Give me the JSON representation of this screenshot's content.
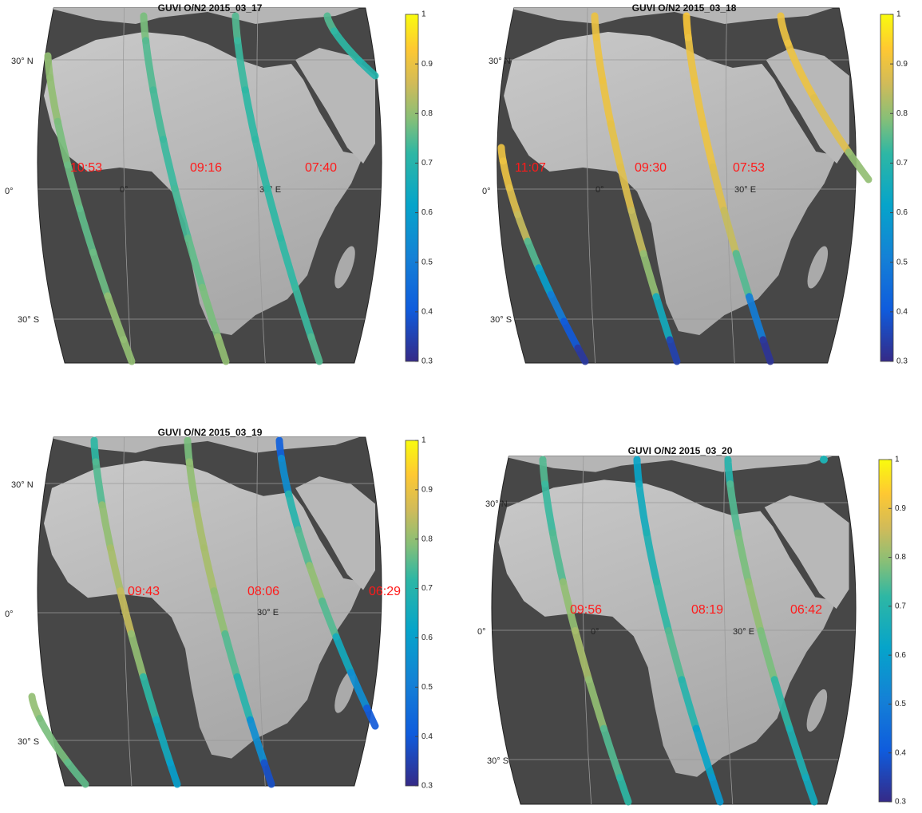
{
  "panels": [
    {
      "title": "GUVI  O/N2 2015_03_17",
      "lat_labels": [
        "30° N",
        "0°",
        "30° S"
      ],
      "lon_labels": [
        "0°",
        "30° E"
      ],
      "colorbar": {
        "clim": [
          0.3,
          1
        ],
        "ticks": [
          0.3,
          0.4,
          0.5,
          0.6,
          0.7,
          0.8,
          0.9,
          1
        ]
      },
      "tracks": [
        {
          "label": "10:53",
          "values": [
            0.8,
            0.8,
            0.78,
            0.77,
            0.76,
            0.77,
            0.8,
            0.8
          ]
        },
        {
          "label": "09:16",
          "values": [
            0.78,
            0.75,
            0.74,
            0.73,
            0.74,
            0.76,
            0.78,
            0.8
          ]
        },
        {
          "label": "07:40",
          "values": [
            0.75,
            0.73,
            0.72,
            0.72,
            0.72,
            0.72,
            0.73,
            0.75
          ]
        },
        {
          "values": [
            0.75,
            0.72,
            0.7
          ]
        }
      ]
    },
    {
      "title": "GUVI  O/N2 2015_03_18",
      "lat_labels": [
        "30° N",
        "0°",
        "30° S"
      ],
      "lon_labels": [
        "0°",
        "30° E"
      ],
      "colorbar": {
        "clim": [
          0.3,
          1
        ],
        "ticks": [
          0.3,
          0.4,
          0.5,
          0.6,
          0.7,
          0.8,
          0.9,
          1
        ]
      },
      "tracks": [
        {
          "label": "11:07",
          "values": [
            0.9,
            0.9,
            0.88,
            0.85,
            0.75,
            0.6,
            0.5,
            0.4,
            0.33
          ]
        },
        {
          "label": "09:30",
          "values": [
            0.9,
            0.9,
            0.9,
            0.89,
            0.88,
            0.85,
            0.8,
            0.65,
            0.35
          ]
        },
        {
          "label": "07:53",
          "values": [
            0.92,
            0.9,
            0.9,
            0.9,
            0.88,
            0.85,
            0.75,
            0.5,
            0.32
          ]
        },
        {
          "values": [
            0.9,
            0.9,
            0.88,
            0.8
          ]
        }
      ]
    },
    {
      "title": "GUVI  O/N2 2015_03_19",
      "lat_labels": [
        "30° N",
        "0°",
        "30° S"
      ],
      "lon_labels": [
        "0°",
        "30° E"
      ],
      "colorbar": {
        "clim": [
          0.3,
          1
        ],
        "ticks": [
          0.3,
          0.4,
          0.5,
          0.6,
          0.7,
          0.8,
          0.9,
          1
        ]
      },
      "tracks": [
        {
          "label": "09:43",
          "values": [
            0.72,
            0.75,
            0.8,
            0.82,
            0.85,
            0.8,
            0.72,
            0.65,
            0.6
          ]
        },
        {
          "label": "08:06",
          "values": [
            0.78,
            0.8,
            0.82,
            0.82,
            0.8,
            0.75,
            0.7,
            0.55,
            0.38
          ]
        },
        {
          "label": "06:29",
          "values": [
            0.42,
            0.55,
            0.7,
            0.75,
            0.8,
            0.75,
            0.65,
            0.55,
            0.4
          ]
        },
        {
          "values": [
            0.8,
            0.78,
            0.76
          ]
        }
      ]
    },
    {
      "title": "GUVI  O/N2 2015_03_20",
      "lat_labels": [
        "30° N",
        "0°",
        "30° S"
      ],
      "lon_labels": [
        "0°",
        "30° E"
      ],
      "colorbar": {
        "clim": [
          0.3,
          1
        ],
        "ticks": [
          0.3,
          0.4,
          0.5,
          0.6,
          0.7,
          0.8,
          0.9,
          1
        ]
      },
      "tracks": [
        {
          "label": "09:56",
          "values": [
            0.75,
            0.73,
            0.75,
            0.8,
            0.82,
            0.8,
            0.75,
            0.72
          ]
        },
        {
          "label": "08:19",
          "values": [
            0.62,
            0.65,
            0.68,
            0.72,
            0.75,
            0.7,
            0.62,
            0.58
          ]
        },
        {
          "label": "06:42",
          "values": [
            0.7,
            0.75,
            0.78,
            0.8,
            0.78,
            0.72,
            0.68,
            0.65
          ]
        },
        {
          "values": [
            0.68
          ]
        }
      ]
    }
  ]
}
